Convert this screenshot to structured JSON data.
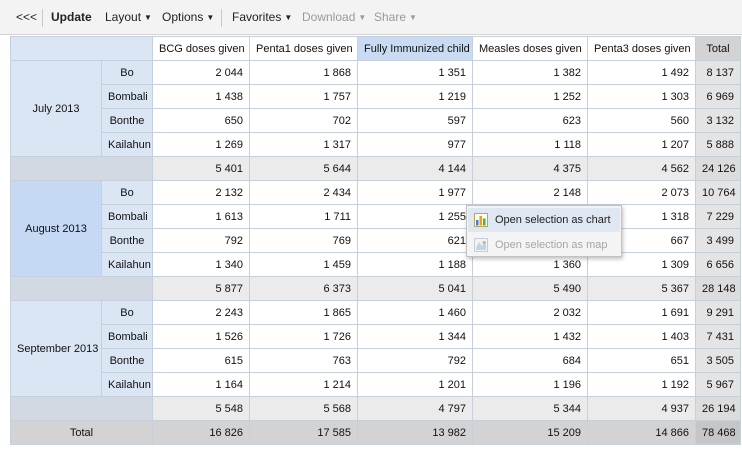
{
  "toolbar": {
    "back_label": "<<<",
    "update_label": "Update",
    "layout_label": "Layout",
    "options_label": "Options",
    "favorites_label": "Favorites",
    "download_label": "Download",
    "share_label": "Share"
  },
  "table": {
    "columns": [
      "BCG doses given",
      "Penta1 doses given",
      "Fully Immunized child",
      "Measles doses given",
      "Penta3 doses given"
    ],
    "total_label": "Total",
    "periods": [
      {
        "name": "July 2013",
        "rows": [
          {
            "org": "Bo",
            "values": [
              "2 044",
              "1 868",
              "1 351",
              "1 382",
              "1 492"
            ],
            "total": "8 137"
          },
          {
            "org": "Bombali",
            "values": [
              "1 438",
              "1 757",
              "1 219",
              "1 252",
              "1 303"
            ],
            "total": "6 969"
          },
          {
            "org": "Bonthe",
            "values": [
              "650",
              "702",
              "597",
              "623",
              "560"
            ],
            "total": "3 132"
          },
          {
            "org": "Kailahun",
            "values": [
              "1 269",
              "1 317",
              "977",
              "1 118",
              "1 207"
            ],
            "total": "5 888"
          }
        ],
        "subtotal": {
          "values": [
            "5 401",
            "5 644",
            "4 144",
            "4 375",
            "4 562"
          ],
          "total": "24 126"
        }
      },
      {
        "name": "August 2013",
        "rows": [
          {
            "org": "Bo",
            "values": [
              "2 132",
              "2 434",
              "1 977",
              "2 148",
              "2 073"
            ],
            "total": "10 764"
          },
          {
            "org": "Bombali",
            "values": [
              "1 613",
              "1 711",
              "1 255",
              "",
              "1 318"
            ],
            "total": "7 229"
          },
          {
            "org": "Bonthe",
            "values": [
              "792",
              "769",
              "621",
              "",
              "667"
            ],
            "total": "3 499"
          },
          {
            "org": "Kailahun",
            "values": [
              "1 340",
              "1 459",
              "1 188",
              "1 360",
              "1 309"
            ],
            "total": "6 656"
          }
        ],
        "subtotal": {
          "values": [
            "5 877",
            "6 373",
            "5 041",
            "5 490",
            "5 367"
          ],
          "total": "28 148"
        }
      },
      {
        "name": "September 2013",
        "rows": [
          {
            "org": "Bo",
            "values": [
              "2 243",
              "1 865",
              "1 460",
              "2 032",
              "1 691"
            ],
            "total": "9 291"
          },
          {
            "org": "Bombali",
            "values": [
              "1 526",
              "1 726",
              "1 344",
              "1 432",
              "1 403"
            ],
            "total": "7 431"
          },
          {
            "org": "Bonthe",
            "values": [
              "615",
              "763",
              "792",
              "684",
              "651"
            ],
            "total": "3 505"
          },
          {
            "org": "Kailahun",
            "values": [
              "1 164",
              "1 214",
              "1 201",
              "1 196",
              "1 192"
            ],
            "total": "5 967"
          }
        ],
        "subtotal": {
          "values": [
            "5 548",
            "5 568",
            "4 797",
            "5 344",
            "4 937"
          ],
          "total": "26 194"
        }
      }
    ],
    "grand_total_label": "Total",
    "grand_total": {
      "values": [
        "16 826",
        "17 585",
        "13 982",
        "15 209",
        "14 866"
      ],
      "total": "78 468"
    }
  },
  "context_menu": {
    "items": [
      {
        "label": "Open selection as chart",
        "icon": "bar-chart-icon"
      },
      {
        "label": "Open selection as map",
        "icon": "map-icon"
      }
    ]
  },
  "colors": {
    "header_blue": "#dbe6f4",
    "selected_blue": "#c5d9f4",
    "total_gray": "#d3d3d3"
  }
}
